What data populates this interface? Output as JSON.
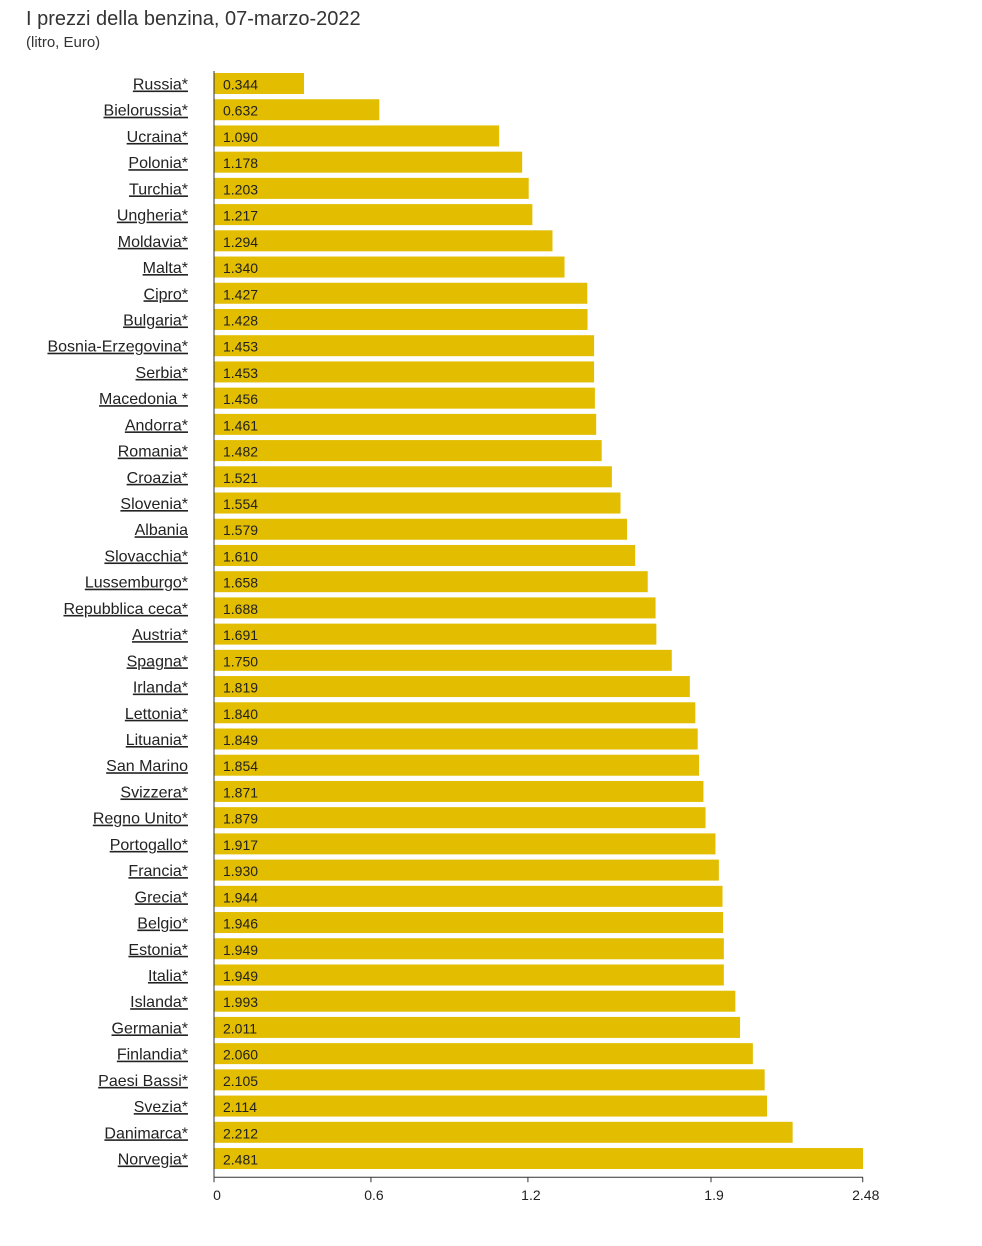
{
  "header": {
    "title": "I prezzi della benzina, 07-marzo-2022",
    "subtitle": "(litro, Euro)"
  },
  "chart_data": {
    "type": "bar",
    "orientation": "horizontal",
    "bar_color": "#e2bd00",
    "categories": [
      "Russia*",
      "Bielorussia*",
      "Ucraina*",
      "Polonia*",
      "Turchia*",
      "Ungheria*",
      "Moldavia*",
      "Malta*",
      "Cipro*",
      "Bulgaria*",
      "Bosnia-Erzegovina*",
      "Serbia*",
      "Macedonia *",
      "Andorra*",
      "Romania*",
      "Croazia*",
      "Slovenia*",
      "Albania ",
      "Slovacchia*",
      "Lussemburgo*",
      "Repubblica ceca*",
      "Austria*",
      "Spagna*",
      "Irlanda*",
      "Lettonia*",
      "Lituania*",
      "San Marino ",
      "Svizzera*",
      "Regno Unito*",
      "Portogallo*",
      "Francia*",
      "Grecia*",
      "Belgio*",
      "Estonia*",
      "Italia*",
      "Islanda*",
      "Germania*",
      "Finlandia*",
      "Paesi Bassi*",
      "Svezia*",
      "Danimarca*",
      "Norvegia*"
    ],
    "values": [
      0.344,
      0.632,
      1.09,
      1.178,
      1.203,
      1.217,
      1.294,
      1.34,
      1.427,
      1.428,
      1.453,
      1.453,
      1.456,
      1.461,
      1.482,
      1.521,
      1.554,
      1.579,
      1.61,
      1.658,
      1.688,
      1.691,
      1.75,
      1.819,
      1.84,
      1.849,
      1.854,
      1.871,
      1.879,
      1.917,
      1.93,
      1.944,
      1.946,
      1.949,
      1.949,
      1.993,
      2.011,
      2.06,
      2.105,
      2.114,
      2.212,
      2.481
    ],
    "value_labels": [
      "0.344",
      "0.632",
      "1.090",
      "1.178",
      "1.203",
      "1.217",
      "1.294",
      "1.340",
      "1.427",
      "1.428",
      "1.453",
      "1.453",
      "1.456",
      "1.461",
      "1.482",
      "1.521",
      "1.554",
      "1.579",
      "1.610",
      "1.658",
      "1.688",
      "1.691",
      "1.750",
      "1.819",
      "1.840",
      "1.849",
      "1.854",
      "1.871",
      "1.879",
      "1.917",
      "1.930",
      "1.944",
      "1.946",
      "1.949",
      "1.949",
      "1.993",
      "2.011",
      "2.060",
      "2.105",
      "2.114",
      "2.212",
      "2.481"
    ],
    "x_ticks": [
      0,
      0.6,
      1.2,
      1.9,
      2.48
    ],
    "x_tick_labels": [
      "0",
      "0.6",
      "1.2",
      "1.9",
      "2.48"
    ],
    "xlim": [
      0,
      2.481
    ],
    "grid": false
  }
}
